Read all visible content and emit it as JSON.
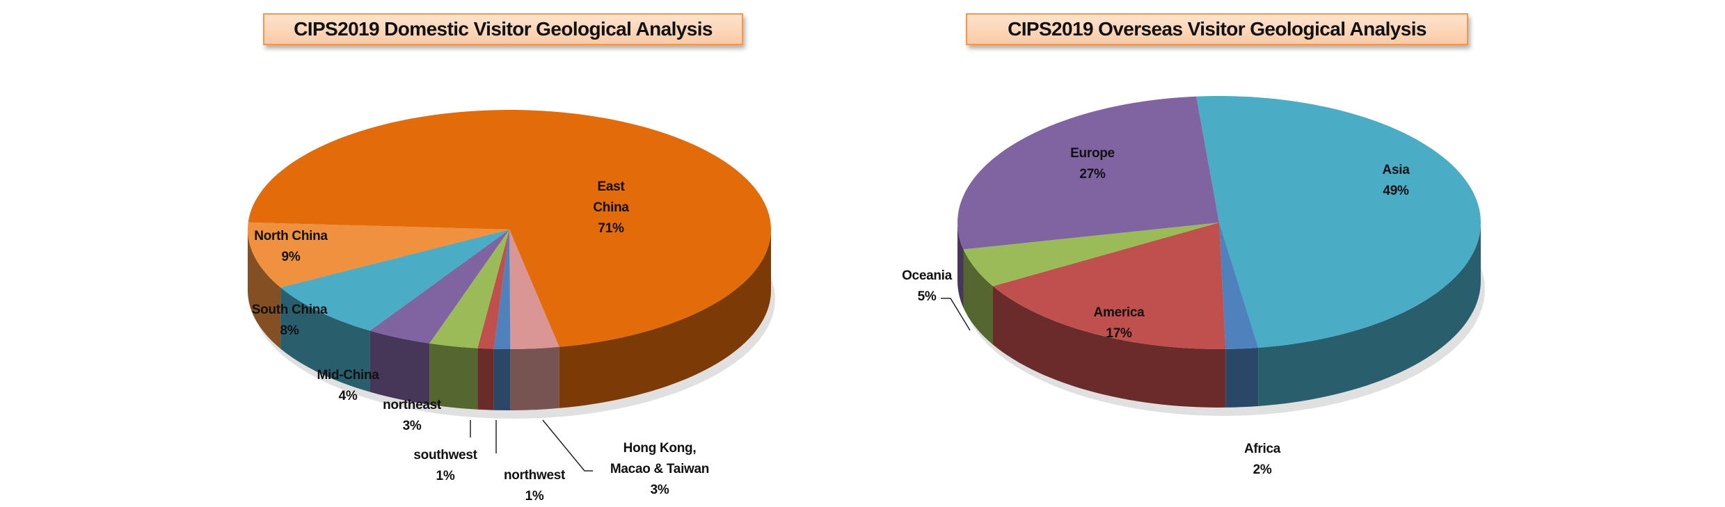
{
  "chart_data": [
    {
      "type": "pie",
      "style": "3d",
      "title": "CIPS2019 Domestic Visitor Geological Analysis",
      "categories": [
        "East China",
        "Hong Kong, Macao & Taiwan",
        "northwest",
        "southwest",
        "northeast",
        "Mid-China",
        "South China",
        "North China"
      ],
      "values": [
        71,
        3,
        1,
        1,
        3,
        4,
        8,
        9
      ],
      "value_labels": [
        "71%",
        "3%",
        "1%",
        "1%",
        "3%",
        "4%",
        "8%",
        "9%"
      ],
      "label_lines": [
        [
          "East",
          "China"
        ],
        [
          "Hong Kong,",
          "Macao & Taiwan"
        ],
        [
          "northwest"
        ],
        [
          "southwest"
        ],
        [
          "northeast"
        ],
        [
          "Mid-China"
        ],
        [
          "South China"
        ],
        [
          "North China"
        ]
      ],
      "colors": [
        "#E26B0A",
        "#D99694",
        "#4F81BD",
        "#C0504D",
        "#9BBB59",
        "#8064A2",
        "#4BACC6",
        "#F0913F"
      ]
    },
    {
      "type": "pie",
      "style": "3d",
      "title": "CIPS2019 Overseas Visitor Geological Analysis",
      "categories": [
        "Asia",
        "Africa",
        "America",
        "Oceania",
        "Europe"
      ],
      "values": [
        49,
        2,
        17,
        5,
        27
      ],
      "value_labels": [
        "49%",
        "2%",
        "17%",
        "5%",
        "27%"
      ],
      "label_lines": [
        [
          "Asia"
        ],
        [
          "Africa"
        ],
        [
          "America"
        ],
        [
          "Oceania"
        ],
        [
          "Europe"
        ]
      ],
      "colors": [
        "#4BACC6",
        "#4F81BD",
        "#C0504D",
        "#9BBB59",
        "#8064A2"
      ]
    }
  ]
}
